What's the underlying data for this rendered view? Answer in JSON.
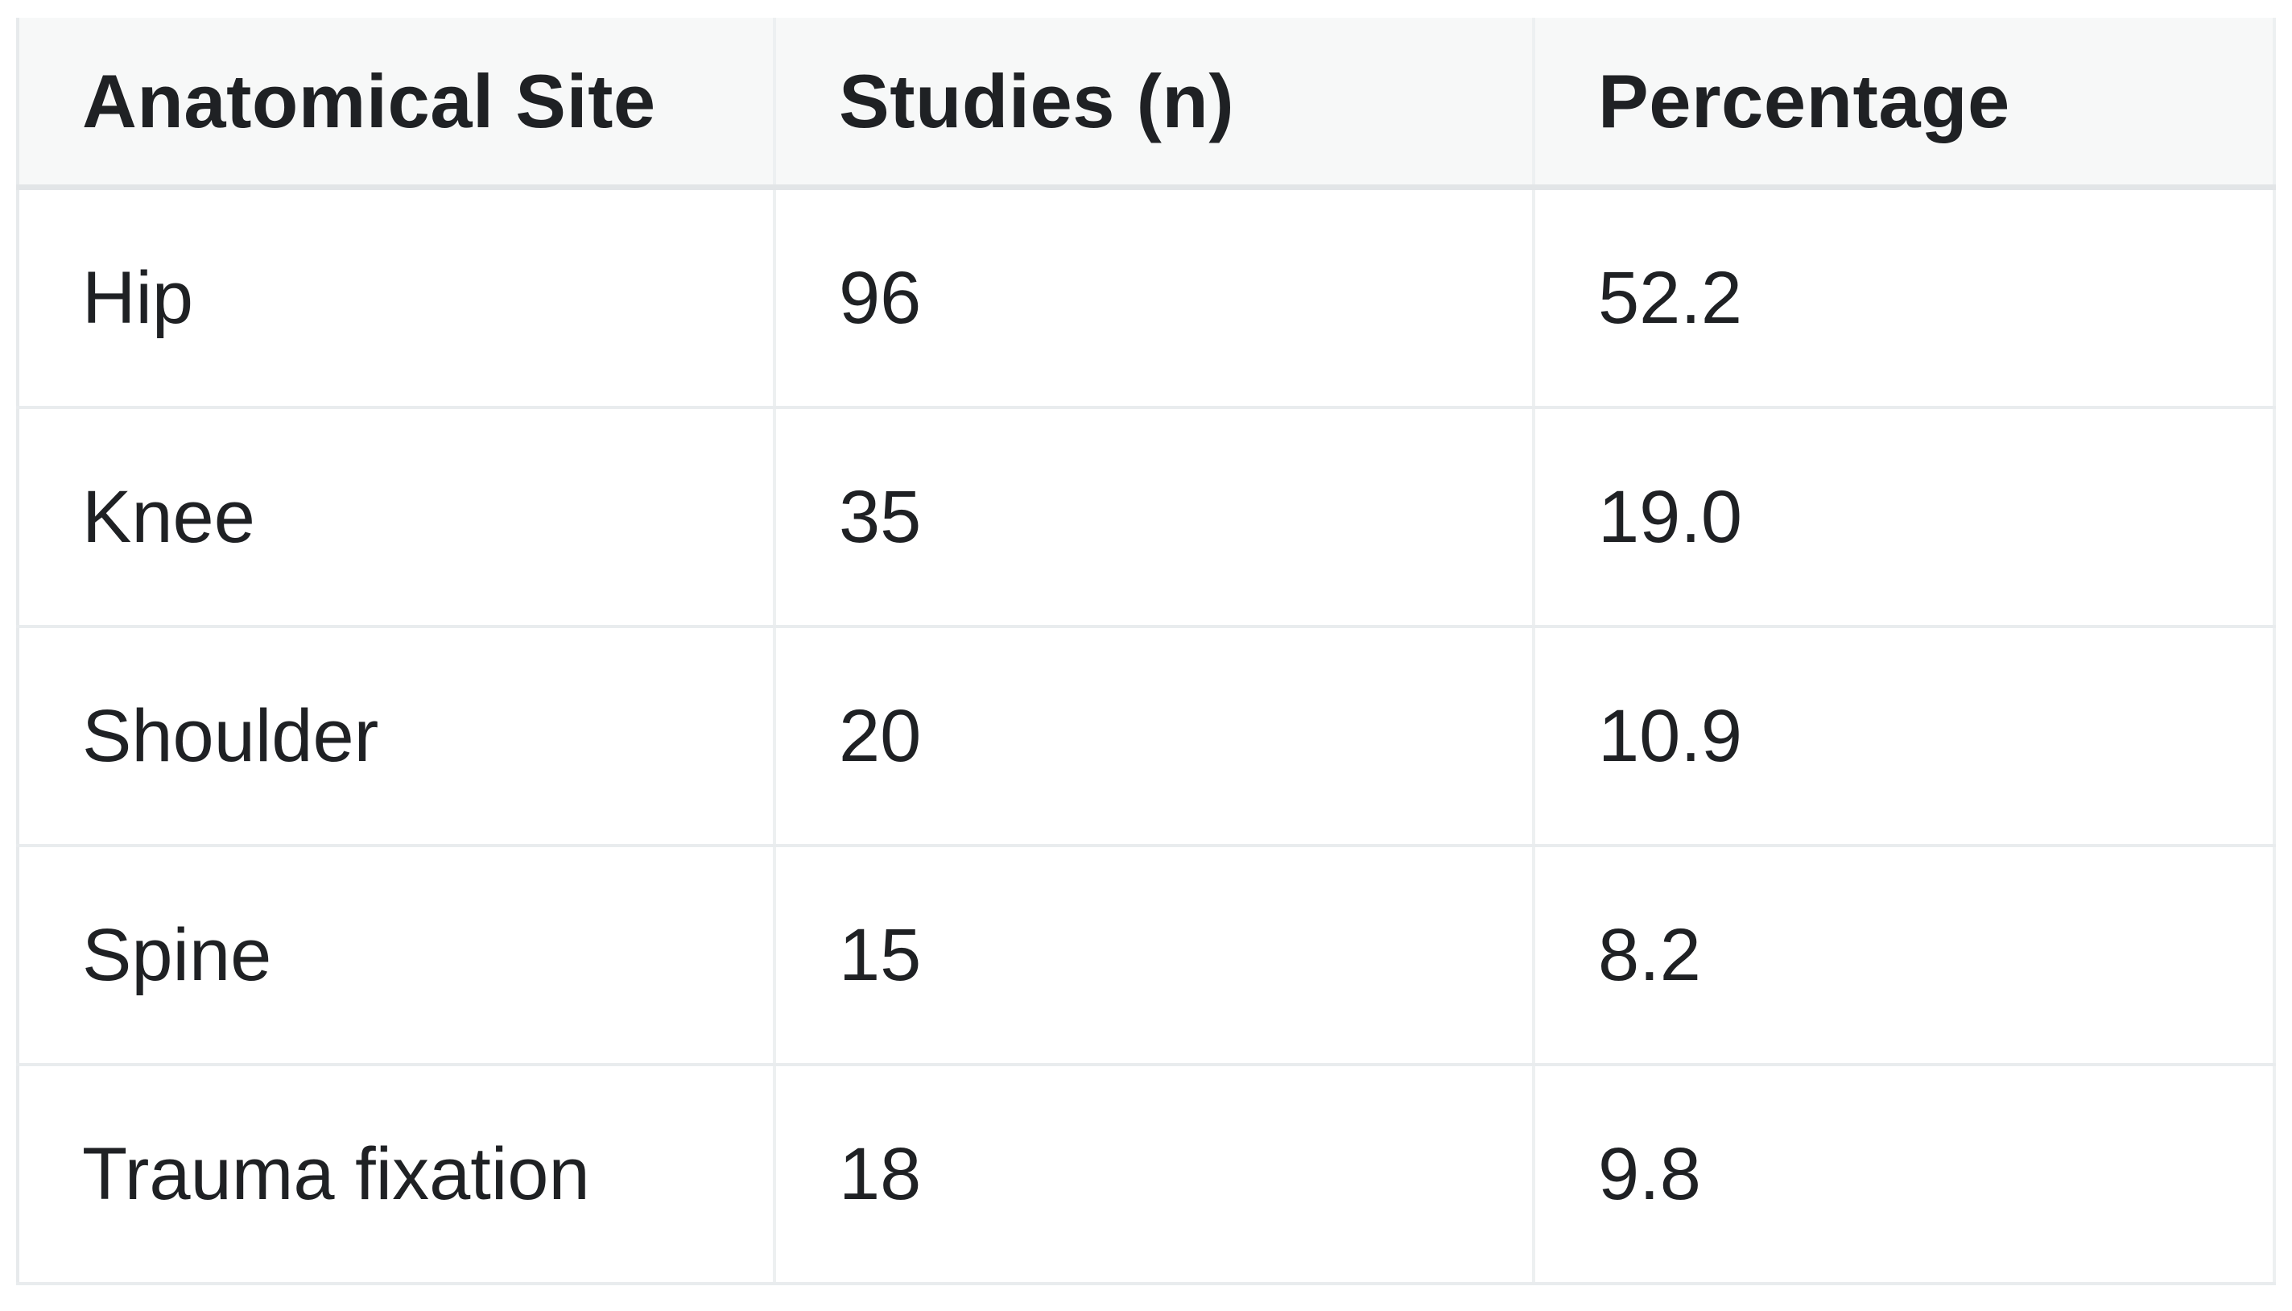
{
  "page": {
    "background_color": "#ffffff",
    "header_background_color": "#f7f8f8",
    "border_color": "#e7eaec",
    "text_color": "#1f2124"
  },
  "table": {
    "columns": [
      "Anatomical Site",
      "Studies (n)",
      "Percentage"
    ],
    "rows": [
      {
        "site": "Hip",
        "studies": "96",
        "percentage": "52.2"
      },
      {
        "site": "Knee",
        "studies": "35",
        "percentage": "19.0"
      },
      {
        "site": "Shoulder",
        "studies": "20",
        "percentage": "10.9"
      },
      {
        "site": "Spine",
        "studies": "15",
        "percentage": "8.2"
      },
      {
        "site": "Trauma fixation",
        "studies": "18",
        "percentage": "9.8"
      }
    ]
  },
  "chart_data": {
    "type": "table",
    "title": "",
    "categories": [
      "Hip",
      "Knee",
      "Shoulder",
      "Spine",
      "Trauma fixation"
    ],
    "series": [
      {
        "name": "Studies (n)",
        "values": [
          96,
          35,
          20,
          15,
          18
        ]
      },
      {
        "name": "Percentage",
        "values": [
          52.2,
          19.0,
          10.9,
          8.2,
          9.8
        ]
      }
    ]
  }
}
